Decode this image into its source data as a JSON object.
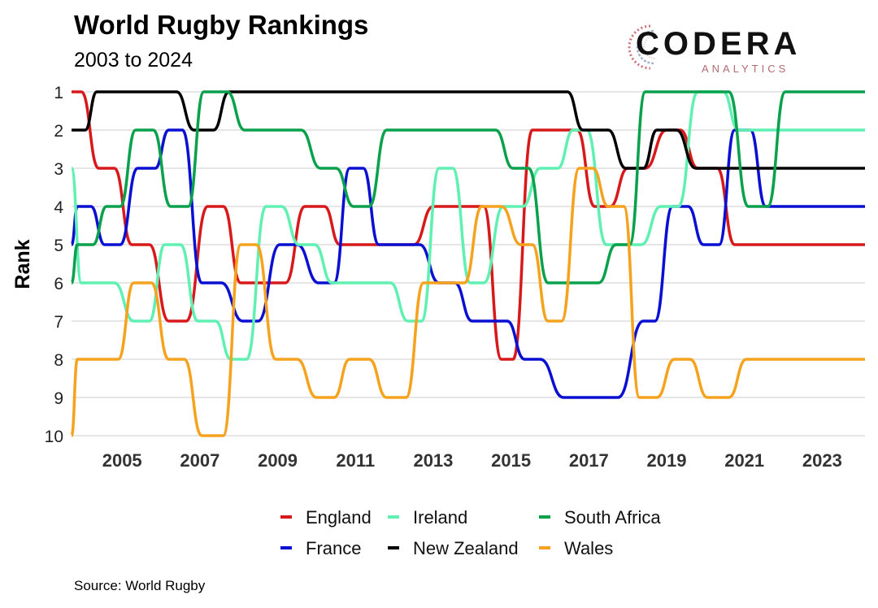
{
  "header": {
    "title": "World Rugby Rankings",
    "subtitle": "2003 to 2024"
  },
  "logo": {
    "word": "CODERA",
    "sub": "ANALYTICS"
  },
  "footer": {
    "source": "Source: World Rugby"
  },
  "chart_data": {
    "type": "line",
    "title": "World Rugby Rankings",
    "subtitle": "2003 to 2024",
    "ylabel": "Rank",
    "xlabel": "",
    "xlim": [
      2003.7,
      2024.1
    ],
    "ylim": [
      1,
      10
    ],
    "y_inverted": true,
    "x_ticks": [
      2005,
      2007,
      2009,
      2011,
      2013,
      2015,
      2017,
      2019,
      2021,
      2023
    ],
    "y_ticks": [
      1,
      2,
      3,
      4,
      5,
      6,
      7,
      8,
      9,
      10
    ],
    "grid": "horizontal",
    "legend_position": "bottom",
    "series": [
      {
        "name": "England",
        "color": "#d7191c",
        "points": [
          [
            2003.7,
            1
          ],
          [
            2003.95,
            1
          ],
          [
            2004.4,
            3
          ],
          [
            2004.8,
            3
          ],
          [
            2005.25,
            5
          ],
          [
            2005.7,
            5
          ],
          [
            2006.2,
            7
          ],
          [
            2006.65,
            7
          ],
          [
            2007.2,
            4
          ],
          [
            2007.6,
            4
          ],
          [
            2008.05,
            6
          ],
          [
            2009.2,
            6
          ],
          [
            2009.7,
            4
          ],
          [
            2010.2,
            4
          ],
          [
            2010.6,
            5
          ],
          [
            2012.5,
            5
          ],
          [
            2013,
            4
          ],
          [
            2014.3,
            4
          ],
          [
            2014.75,
            8
          ],
          [
            2015.05,
            8
          ],
          [
            2015.55,
            2
          ],
          [
            2016.7,
            2
          ],
          [
            2017.15,
            4
          ],
          [
            2017.55,
            4
          ],
          [
            2018,
            3
          ],
          [
            2018.45,
            3
          ],
          [
            2019,
            2
          ],
          [
            2019.35,
            2
          ],
          [
            2019.8,
            3
          ],
          [
            2020.3,
            3
          ],
          [
            2020.75,
            5
          ],
          [
            2024.1,
            5
          ]
        ]
      },
      {
        "name": "France",
        "color": "#0a10d1",
        "points": [
          [
            2003.7,
            5
          ],
          [
            2003.85,
            4
          ],
          [
            2004.2,
            4
          ],
          [
            2004.55,
            5
          ],
          [
            2004.95,
            5
          ],
          [
            2005.4,
            3
          ],
          [
            2005.85,
            3
          ],
          [
            2006.2,
            2
          ],
          [
            2006.55,
            2
          ],
          [
            2007.05,
            6
          ],
          [
            2007.55,
            6
          ],
          [
            2008.1,
            7
          ],
          [
            2008.5,
            7
          ],
          [
            2009.05,
            5
          ],
          [
            2009.5,
            5
          ],
          [
            2010.05,
            6
          ],
          [
            2010.45,
            6
          ],
          [
            2010.85,
            3
          ],
          [
            2011.2,
            3
          ],
          [
            2011.6,
            5
          ],
          [
            2012.3,
            5
          ],
          [
            2012.65,
            5
          ],
          [
            2013.15,
            6
          ],
          [
            2013.55,
            6
          ],
          [
            2014,
            7
          ],
          [
            2014.9,
            7
          ],
          [
            2015.35,
            8
          ],
          [
            2015.75,
            8
          ],
          [
            2016.35,
            9
          ],
          [
            2017.75,
            9
          ],
          [
            2018.4,
            7
          ],
          [
            2018.7,
            7
          ],
          [
            2019.15,
            4
          ],
          [
            2019.55,
            4
          ],
          [
            2019.95,
            5
          ],
          [
            2020.35,
            5
          ],
          [
            2020.75,
            2
          ],
          [
            2021.15,
            2
          ],
          [
            2021.55,
            4
          ],
          [
            2024.1,
            4
          ]
        ]
      },
      {
        "name": "Ireland",
        "color": "#5ff0b2",
        "points": [
          [
            2003.7,
            3
          ],
          [
            2003.95,
            6
          ],
          [
            2004.8,
            6
          ],
          [
            2005.3,
            7
          ],
          [
            2005.7,
            7
          ],
          [
            2006.1,
            5
          ],
          [
            2006.5,
            5
          ],
          [
            2006.95,
            7
          ],
          [
            2007.4,
            7
          ],
          [
            2007.8,
            8
          ],
          [
            2008.2,
            8
          ],
          [
            2008.7,
            4
          ],
          [
            2009.1,
            4
          ],
          [
            2009.55,
            5
          ],
          [
            2009.95,
            5
          ],
          [
            2010.4,
            6
          ],
          [
            2011.9,
            6
          ],
          [
            2012.35,
            7
          ],
          [
            2012.7,
            7
          ],
          [
            2013.15,
            3
          ],
          [
            2013.5,
            3
          ],
          [
            2013.95,
            6
          ],
          [
            2014.3,
            6
          ],
          [
            2014.8,
            4
          ],
          [
            2015.3,
            4
          ],
          [
            2015.75,
            3
          ],
          [
            2016.2,
            3
          ],
          [
            2016.6,
            2
          ],
          [
            2016.95,
            2
          ],
          [
            2017.45,
            5
          ],
          [
            2018.35,
            5
          ],
          [
            2018.85,
            4
          ],
          [
            2019.3,
            4
          ],
          [
            2019.8,
            1
          ],
          [
            2020.45,
            1
          ],
          [
            2020.85,
            2
          ],
          [
            2024.1,
            2
          ]
        ]
      },
      {
        "name": "New Zealand",
        "color": "#000000",
        "points": [
          [
            2003.7,
            2
          ],
          [
            2004.05,
            2
          ],
          [
            2004.35,
            1
          ],
          [
            2006.4,
            1
          ],
          [
            2006.85,
            2
          ],
          [
            2007.35,
            2
          ],
          [
            2007.75,
            1
          ],
          [
            2016.45,
            1
          ],
          [
            2016.85,
            2
          ],
          [
            2017.5,
            2
          ],
          [
            2017.95,
            3
          ],
          [
            2018.4,
            3
          ],
          [
            2018.75,
            2
          ],
          [
            2019.25,
            2
          ],
          [
            2019.75,
            3
          ],
          [
            2024.1,
            3
          ]
        ]
      },
      {
        "name": "South Africa",
        "color": "#0aa14d",
        "points": [
          [
            2003.7,
            6
          ],
          [
            2003.85,
            5
          ],
          [
            2004.25,
            5
          ],
          [
            2004.6,
            4
          ],
          [
            2004.95,
            4
          ],
          [
            2005.35,
            2
          ],
          [
            2005.8,
            2
          ],
          [
            2006.25,
            4
          ],
          [
            2006.7,
            4
          ],
          [
            2007.1,
            1
          ],
          [
            2007.7,
            1
          ],
          [
            2008.15,
            2
          ],
          [
            2009.6,
            2
          ],
          [
            2010.1,
            3
          ],
          [
            2010.5,
            3
          ],
          [
            2010.95,
            4
          ],
          [
            2011.35,
            4
          ],
          [
            2011.8,
            2
          ],
          [
            2014.6,
            2
          ],
          [
            2015.05,
            3
          ],
          [
            2015.45,
            3
          ],
          [
            2015.95,
            6
          ],
          [
            2017.25,
            6
          ],
          [
            2017.7,
            5
          ],
          [
            2018.05,
            5
          ],
          [
            2018.45,
            1
          ],
          [
            2020.6,
            1
          ],
          [
            2021.1,
            4
          ],
          [
            2021.6,
            4
          ],
          [
            2022.05,
            1
          ],
          [
            2024.1,
            1
          ]
        ]
      },
      {
        "name": "Wales",
        "color": "#f5a31e",
        "points": [
          [
            2003.7,
            10
          ],
          [
            2003.85,
            8
          ],
          [
            2004.9,
            8
          ],
          [
            2005.3,
            6
          ],
          [
            2005.75,
            6
          ],
          [
            2006.2,
            8
          ],
          [
            2006.6,
            8
          ],
          [
            2007.05,
            10
          ],
          [
            2007.6,
            10
          ],
          [
            2008.05,
            5
          ],
          [
            2008.45,
            5
          ],
          [
            2008.95,
            8
          ],
          [
            2009.5,
            8
          ],
          [
            2010,
            9
          ],
          [
            2010.45,
            9
          ],
          [
            2010.85,
            8
          ],
          [
            2011.35,
            8
          ],
          [
            2011.8,
            9
          ],
          [
            2012.3,
            9
          ],
          [
            2012.75,
            6
          ],
          [
            2013.8,
            6
          ],
          [
            2014.25,
            4
          ],
          [
            2014.75,
            4
          ],
          [
            2015.25,
            5
          ],
          [
            2015.55,
            5
          ],
          [
            2015.95,
            7
          ],
          [
            2016.3,
            7
          ],
          [
            2016.75,
            3
          ],
          [
            2017.1,
            3
          ],
          [
            2017.5,
            4
          ],
          [
            2017.9,
            4
          ],
          [
            2018.3,
            9
          ],
          [
            2018.75,
            9
          ],
          [
            2019.2,
            8
          ],
          [
            2019.6,
            8
          ],
          [
            2020.05,
            9
          ],
          [
            2020.6,
            9
          ],
          [
            2021.05,
            8
          ],
          [
            2024.1,
            8
          ]
        ]
      }
    ]
  }
}
